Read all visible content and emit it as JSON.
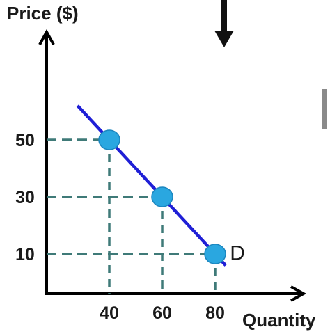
{
  "chart_data": {
    "type": "line",
    "ylabel": "Price ($)",
    "xlabel": "Quantity",
    "x_ticks": [
      40,
      60,
      80
    ],
    "y_ticks": [
      10,
      30,
      50
    ],
    "series": [
      {
        "name": "D",
        "x": [
          40,
          60,
          80
        ],
        "y": [
          50,
          30,
          10
        ]
      }
    ],
    "line_color": "#1f1fd6",
    "point_color": "#2aa7e0",
    "guide_color": "#3f7a78"
  }
}
